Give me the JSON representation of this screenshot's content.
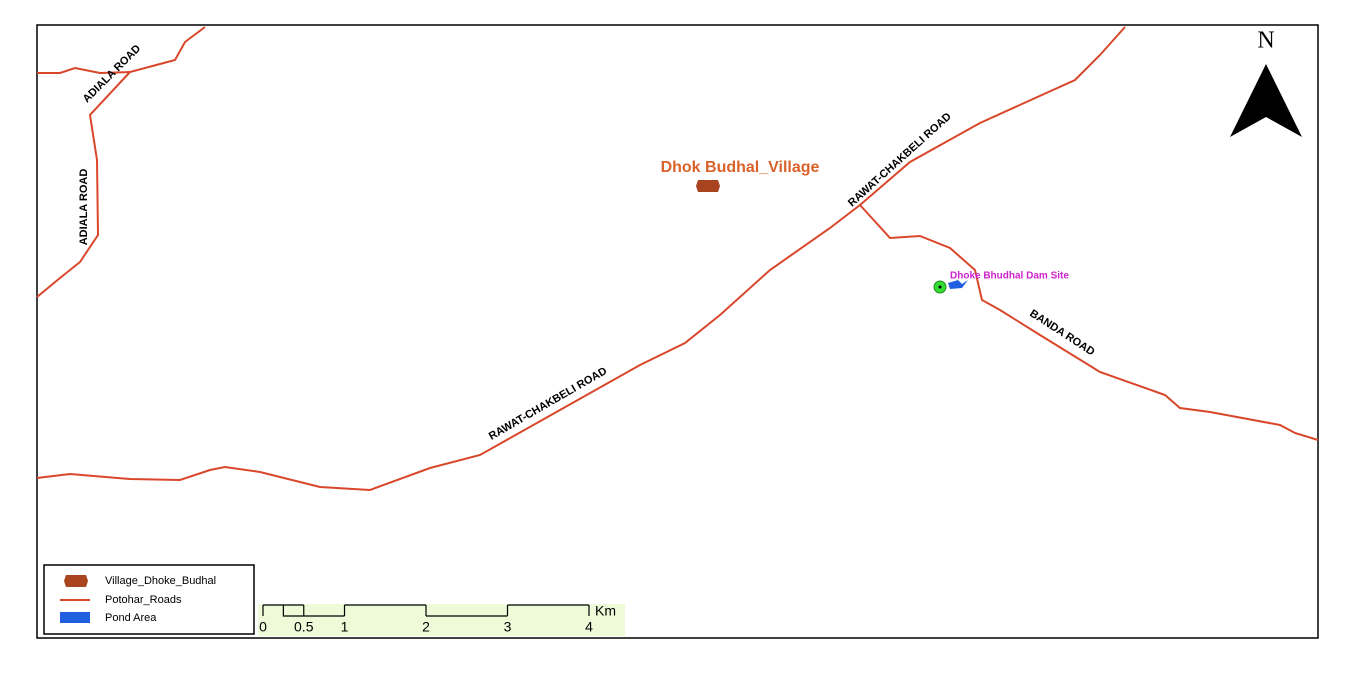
{
  "map": {
    "north_label": "N",
    "village_label": "Dhok Budhal_Village",
    "dam_site_label": "Dhoke Bhudhal Dam Site",
    "road_labels": [
      "ADIALA ROAD",
      "ADIALA ROAD",
      "RAWAT-CHAKBELI ROAD",
      "RAWAT-CHAKBELI ROAD",
      "BANDA ROAD"
    ],
    "legend": [
      "Village_Dhoke_Budhal",
      "Potohar_Roads",
      "Pond Area"
    ],
    "scale_bar": {
      "ticks": [
        0,
        0.5,
        1,
        2,
        3,
        4
      ],
      "unit": "Km"
    }
  }
}
